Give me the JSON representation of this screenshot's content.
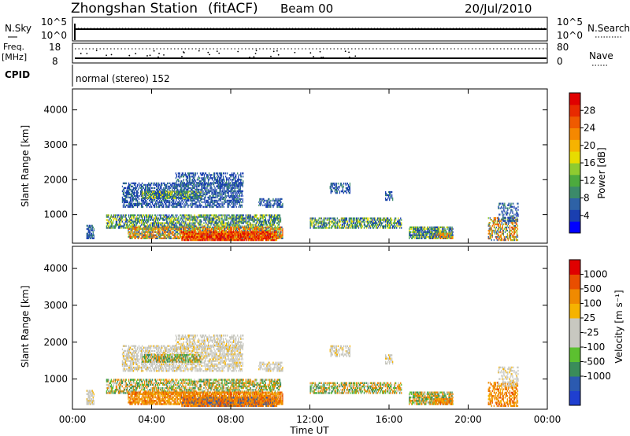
{
  "header": {
    "station": "Zhongshan Station",
    "mode": "(fitACF)",
    "beam": "Beam 00",
    "date": "20/Jul/2010"
  },
  "strip": {
    "nsky_label": "N.Sky",
    "nsearch_label": "N.Search",
    "nsky_ticks": [
      "10^5",
      "10^0"
    ],
    "nsearch_ticks": [
      "10^5",
      "10^0"
    ],
    "freq_label": "Freq.",
    "freq_unit": "[MHz]",
    "freq_ticks": [
      "18",
      "8"
    ],
    "nave_label": "Nave",
    "nave_ticks": [
      "80",
      "0"
    ],
    "cpid_label": "CPID",
    "cpid_text": "normal (stereo) 152"
  },
  "chart_data": [
    {
      "type": "heatmap",
      "name": "power",
      "ylabel": "Slant Range [km]",
      "y_ticks": [
        1000,
        2000,
        3000,
        4000
      ],
      "ylim": [
        180,
        4600
      ],
      "xlim": [
        0,
        24
      ],
      "colorbar_label": "Power [dB]",
      "colorbar_ticks": [
        4,
        8,
        12,
        16,
        20,
        24,
        28
      ],
      "colorbar_range": [
        0,
        32
      ],
      "colors": [
        "#0000ff",
        "#1a3fb0",
        "#2e62a6",
        "#3b8a6a",
        "#4caa3e",
        "#8ecb30",
        "#e7dc00",
        "#f6b300",
        "#f58800",
        "#ef5a00",
        "#e82a00",
        "#e00000"
      ]
    },
    {
      "type": "heatmap",
      "name": "velocity",
      "ylabel": "Slant Range [km]",
      "y_ticks": [
        1000,
        2000,
        3000,
        4000
      ],
      "ylim": [
        180,
        4600
      ],
      "xlim": [
        0,
        24
      ],
      "colorbar_label": "Velocity [m s⁻¹]",
      "colorbar_ticks": [
        "1000",
        "500",
        "100",
        "25",
        "-25",
        "-100",
        "-500",
        "-1000"
      ],
      "colors": [
        "#1f3fd0",
        "#2b5ab0",
        "#3a8c5a",
        "#5cc030",
        "#c8c8c0",
        "#c8c8c0",
        "#f6b300",
        "#f08a00",
        "#e94e00",
        "#e00000"
      ]
    }
  ],
  "xaxis": {
    "ticks": [
      "00:00",
      "04:00",
      "08:00",
      "12:00",
      "16:00",
      "20:00",
      "00:00"
    ],
    "label": "Time UT"
  }
}
